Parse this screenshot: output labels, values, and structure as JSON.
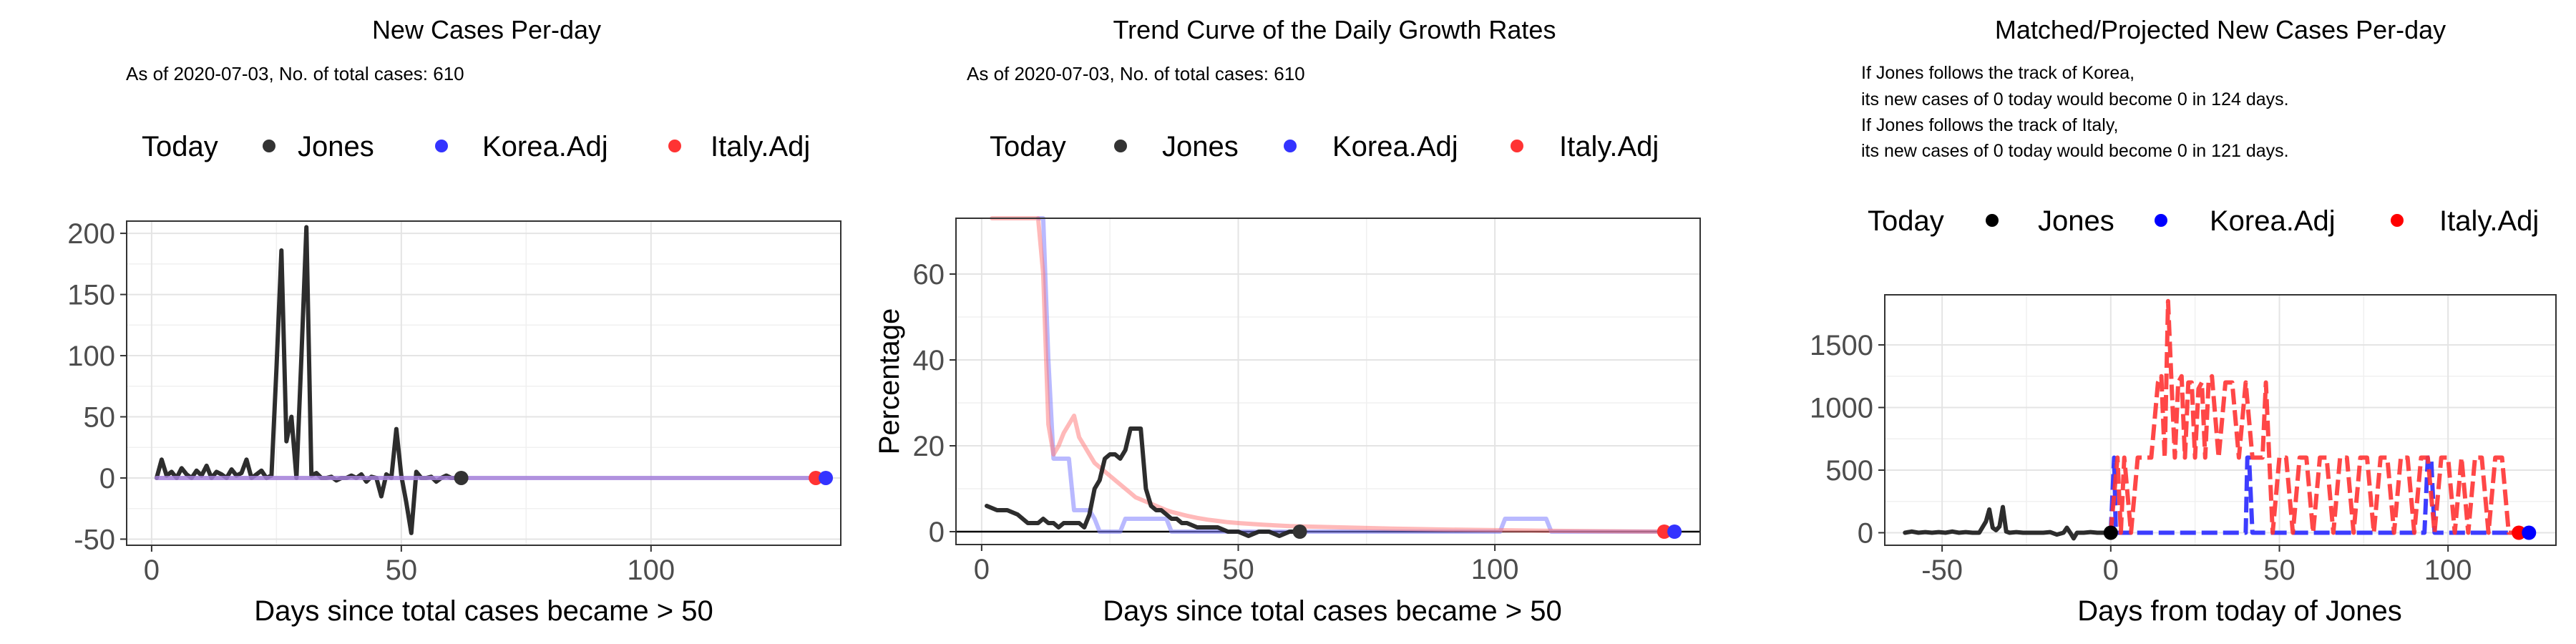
{
  "chart_data": [
    {
      "type": "line",
      "title": "New Cases Per-day",
      "subtitle": "As of 2020-07-03, No. of total cases: 610",
      "xlabel": "Days since total cases became > 50",
      "ylabel": "",
      "xlim": [
        -5,
        138
      ],
      "ylim": [
        -55,
        210
      ],
      "xticks": [
        0,
        50,
        100
      ],
      "yticks": [
        -50,
        0,
        50,
        100,
        150,
        200
      ],
      "grid": true,
      "legend": {
        "title": "Today",
        "position": "top",
        "entries": [
          "Jones",
          "Korea.Adj",
          "Italy.Adj"
        ]
      },
      "series": [
        {
          "name": "Jones",
          "color": "#222222",
          "style": "solid",
          "x": [
            1,
            2,
            3,
            4,
            5,
            6,
            7,
            8,
            9,
            10,
            11,
            12,
            13,
            14,
            15,
            16,
            17,
            18,
            19,
            20,
            21,
            22,
            23,
            24,
            25,
            26,
            27,
            28,
            29,
            30,
            31,
            32,
            33,
            34,
            35,
            36,
            37,
            38,
            39,
            40,
            41,
            42,
            43,
            44,
            45,
            46,
            47,
            48,
            49,
            50,
            51,
            52,
            53,
            54,
            55,
            56,
            57,
            58,
            59,
            60,
            61,
            62
          ],
          "y": [
            0,
            15,
            2,
            5,
            0,
            8,
            3,
            0,
            6,
            2,
            10,
            0,
            5,
            3,
            0,
            7,
            2,
            4,
            15,
            0,
            3,
            6,
            0,
            2,
            90,
            186,
            30,
            50,
            0,
            100,
            205,
            2,
            4,
            0,
            0,
            1,
            -2,
            0,
            0,
            2,
            0,
            3,
            -3,
            1,
            0,
            -15,
            3,
            0,
            40,
            2,
            -20,
            -45,
            5,
            0,
            0,
            1,
            -3,
            0,
            2,
            0,
            0,
            0
          ]
        },
        {
          "name": "Italy.Adj",
          "color": "#ff8080",
          "style": "solid",
          "x": [
            1,
            133
          ],
          "y": [
            0,
            0
          ]
        },
        {
          "name": "Korea.Adj",
          "color": "#8080ff",
          "style": "solid",
          "x": [
            1,
            135
          ],
          "y": [
            0,
            0
          ]
        }
      ],
      "today_points": [
        {
          "name": "Jones",
          "x": 62,
          "y": 0,
          "color": "#333333"
        },
        {
          "name": "Italy.Adj",
          "x": 133,
          "y": 0,
          "color": "#ff3333"
        },
        {
          "name": "Korea.Adj",
          "x": 135,
          "y": 0,
          "color": "#3333ff"
        }
      ]
    },
    {
      "type": "line",
      "title": "Trend Curve of the Daily Growth Rates",
      "subtitle": "As of 2020-07-03, No. of total cases: 610",
      "xlabel": "Days since total cases became > 50",
      "ylabel": "Percentage",
      "xlim": [
        -5,
        140
      ],
      "ylim": [
        -3,
        73
      ],
      "xticks": [
        0,
        50,
        100
      ],
      "yticks": [
        0,
        20,
        40,
        60
      ],
      "grid": true,
      "legend": {
        "title": "Today",
        "position": "top",
        "entries": [
          "Jones",
          "Korea.Adj",
          "Italy.Adj"
        ]
      },
      "series": [
        {
          "name": "Korea.Adj",
          "color": "#8080ff",
          "style": "solid",
          "x": [
            11,
            12,
            13,
            14,
            15,
            16,
            17,
            18,
            19,
            20,
            21,
            22,
            23,
            24,
            25,
            26,
            27,
            28,
            29,
            30,
            31,
            32,
            33,
            34,
            35,
            36,
            37,
            38,
            39,
            40,
            41,
            42,
            100,
            101,
            102,
            103,
            104,
            105,
            106,
            107,
            108,
            109,
            110,
            111,
            112,
            135
          ],
          "y": [
            73,
            73,
            40,
            17,
            17,
            17,
            17,
            5,
            5,
            5,
            5,
            3,
            0,
            0,
            0,
            0,
            0,
            3,
            3,
            3,
            3,
            3,
            3,
            3,
            3,
            3,
            0,
            0,
            0,
            0,
            0,
            0,
            0,
            0,
            3,
            3,
            3,
            3,
            3,
            3,
            3,
            3,
            3,
            0,
            0,
            0
          ]
        },
        {
          "name": "Italy.Adj",
          "color": "#ff8080",
          "style": "solid",
          "x": [
            2,
            4,
            6,
            8,
            10,
            11,
            12,
            13,
            14,
            15,
            16,
            17,
            18,
            19,
            20,
            21,
            22,
            23,
            24,
            25,
            26,
            27,
            28,
            29,
            30,
            31,
            32,
            33,
            34,
            35,
            36,
            37,
            38,
            39,
            40,
            42,
            44,
            46,
            48,
            50,
            55,
            60,
            70,
            80,
            90,
            100,
            110,
            120,
            133
          ],
          "y": [
            73,
            73,
            73,
            73,
            73,
            73,
            60,
            25,
            18,
            20,
            23,
            25,
            27,
            22,
            20,
            18,
            16,
            15,
            14,
            13,
            12,
            11,
            10,
            9,
            8,
            7.5,
            7,
            6.5,
            6,
            5.5,
            5,
            4.6,
            4.3,
            4,
            3.7,
            3.2,
            2.8,
            2.5,
            2.2,
            2,
            1.6,
            1.3,
            1,
            0.7,
            0.5,
            0.35,
            0.2,
            0.1,
            0
          ]
        },
        {
          "name": "Jones",
          "color": "#222222",
          "style": "solid",
          "x": [
            1,
            3,
            5,
            7,
            9,
            10,
            11,
            12,
            13,
            14,
            15,
            16,
            17,
            18,
            19,
            20,
            21,
            22,
            23,
            24,
            25,
            26,
            27,
            28,
            29,
            30,
            31,
            32,
            33,
            34,
            35,
            36,
            37,
            38,
            39,
            40,
            42,
            44,
            46,
            48,
            50,
            52,
            54,
            56,
            58,
            60,
            62
          ],
          "y": [
            6,
            5,
            5,
            4,
            2,
            2,
            2,
            3,
            2,
            2,
            1,
            2,
            2,
            2,
            2,
            1,
            4,
            10,
            12,
            17,
            18,
            18,
            17,
            19,
            24,
            24,
            24,
            10,
            6,
            5,
            5,
            4,
            3,
            3,
            2,
            2,
            1,
            1,
            1,
            0,
            0,
            -1,
            0,
            0,
            -1,
            0,
            0
          ]
        }
      ],
      "today_points": [
        {
          "name": "Jones",
          "x": 62,
          "y": 0,
          "color": "#333333"
        },
        {
          "name": "Italy.Adj",
          "x": 133,
          "y": 0,
          "color": "#ff3333"
        },
        {
          "name": "Korea.Adj",
          "x": 135,
          "y": 0,
          "color": "#3333ff"
        }
      ]
    },
    {
      "type": "line",
      "title": "Matched/Projected New Cases Per-day",
      "annotation": [
        "If Jones follows the track of Korea,",
        "its new cases of 0 today would become 0 in 124 days.",
        "If Jones follows the track of Italy,",
        "its new cases of 0 today would become 0 in 121 days."
      ],
      "xlabel": "Days from today of Jones",
      "ylabel": "",
      "xlim": [
        -67,
        132
      ],
      "ylim": [
        -100,
        1900
      ],
      "xticks": [
        -50,
        0,
        50,
        100
      ],
      "yticks": [
        0,
        500,
        1000,
        1500
      ],
      "grid": true,
      "legend": {
        "title": "Today",
        "position": "top",
        "entries": [
          "Jones",
          "Korea.Adj",
          "Italy.Adj"
        ]
      },
      "series": [
        {
          "name": "Jones",
          "color": "#222222",
          "style": "solid",
          "x": [
            -61,
            -59,
            -57,
            -55,
            -53,
            -51,
            -49,
            -47,
            -45,
            -43,
            -41,
            -39,
            -37,
            -36,
            -35,
            -34,
            -33,
            -32,
            -31,
            -30,
            -28,
            -26,
            -24,
            -22,
            -20,
            -18,
            -16,
            -14,
            -13,
            -12,
            -11,
            -10,
            -8,
            -6,
            -4,
            -2,
            0
          ],
          "y": [
            0,
            10,
            0,
            5,
            0,
            5,
            0,
            10,
            0,
            5,
            0,
            0,
            90,
            186,
            40,
            20,
            50,
            205,
            10,
            0,
            5,
            0,
            0,
            0,
            0,
            5,
            -15,
            0,
            40,
            0,
            -45,
            0,
            0,
            5,
            0,
            0,
            0
          ]
        },
        {
          "name": "Korea.Adj",
          "color": "#3333ff",
          "style": "dashed",
          "x": [
            0,
            1,
            1.5,
            2,
            4,
            6,
            8,
            10,
            12,
            14,
            16,
            18,
            20,
            22,
            24,
            26,
            28,
            30,
            32,
            34,
            36,
            38,
            40,
            40.5,
            41,
            42,
            43,
            44,
            50,
            60,
            70,
            80,
            90,
            93,
            94,
            95,
            96,
            97,
            98,
            100,
            110,
            124
          ],
          "y": [
            0,
            600,
            0,
            0,
            0,
            0,
            0,
            0,
            0,
            0,
            0,
            0,
            0,
            0,
            0,
            0,
            0,
            0,
            0,
            0,
            0,
            0,
            0,
            600,
            600,
            0,
            0,
            0,
            0,
            0,
            0,
            0,
            0,
            0,
            600,
            600,
            0,
            0,
            0,
            0,
            0,
            0
          ]
        },
        {
          "name": "Italy.Adj",
          "color": "#ff3333",
          "style": "dashed",
          "x": [
            0,
            2,
            3,
            4,
            6,
            8,
            10,
            12,
            14,
            15,
            16,
            17,
            18,
            19,
            20,
            21,
            22,
            23,
            24,
            25,
            26,
            27,
            28,
            29,
            30,
            32,
            34,
            36,
            38,
            40,
            42,
            44,
            45,
            46,
            47,
            48,
            50,
            52,
            54,
            56,
            58,
            60,
            62,
            64,
            66,
            68,
            70,
            72,
            74,
            76,
            78,
            80,
            82,
            84,
            86,
            88,
            90,
            92,
            94,
            96,
            98,
            100,
            102,
            104,
            105,
            106,
            108,
            110,
            112,
            114,
            116,
            118,
            121
          ],
          "y": [
            0,
            600,
            0,
            600,
            0,
            600,
            600,
            600,
            1200,
            1250,
            600,
            1850,
            1200,
            600,
            1200,
            1250,
            600,
            1200,
            1200,
            600,
            1150,
            1200,
            600,
            1200,
            1250,
            600,
            1200,
            1200,
            600,
            1200,
            600,
            600,
            600,
            1200,
            600,
            0,
            600,
            600,
            0,
            600,
            600,
            0,
            600,
            600,
            0,
            600,
            600,
            0,
            600,
            600,
            0,
            600,
            600,
            0,
            600,
            600,
            0,
            600,
            600,
            0,
            600,
            600,
            0,
            600,
            300,
            0,
            600,
            600,
            0,
            600,
            600,
            0,
            0
          ]
        }
      ],
      "today_points": [
        {
          "name": "Jones",
          "x": 0,
          "y": 0,
          "color": "#000000"
        },
        {
          "name": "Italy.Adj",
          "x": 121,
          "y": 0,
          "color": "#ff0000"
        },
        {
          "name": "Korea.Adj",
          "x": 124,
          "y": 0,
          "color": "#0000ff"
        }
      ]
    }
  ]
}
